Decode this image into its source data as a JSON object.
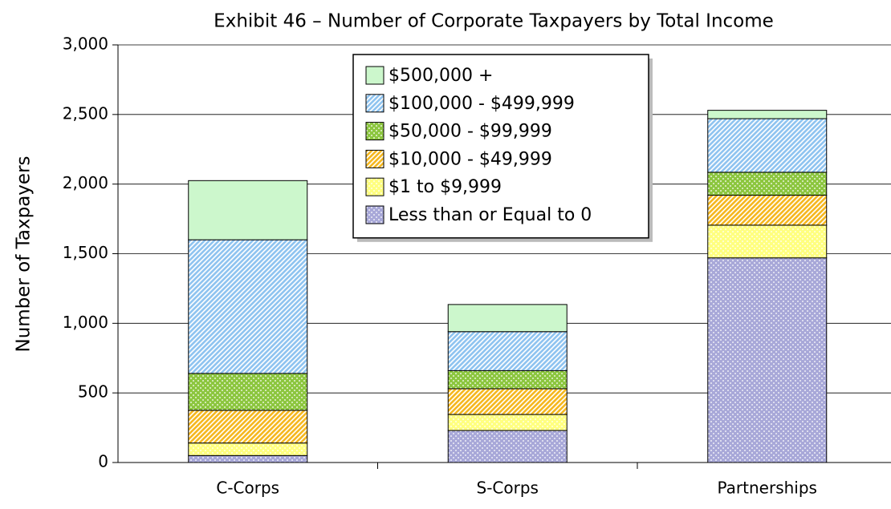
{
  "chart_data": {
    "type": "stacked_bar",
    "title": "Exhibit 46 – Number of Corporate Taxpayers by Total Income",
    "y_label": "Number of Taxpayers",
    "categories": [
      "C-Corps",
      "S-Corps",
      "Partnerships"
    ],
    "series": [
      {
        "name": "Less than or Equal to 0",
        "color": "#a8a8d8",
        "values": [
          50,
          230,
          1470
        ]
      },
      {
        "name": "$1 to $9,999",
        "color": "#ffff80",
        "values": [
          90,
          115,
          235
        ]
      },
      {
        "name": "$10,000 - $49,999",
        "color": "#f5b820",
        "values": [
          235,
          185,
          215
        ]
      },
      {
        "name": "$50,000 - $99,999",
        "color": "#8cc63f",
        "values": [
          265,
          130,
          165
        ]
      },
      {
        "name": "$100,000 - $499,999",
        "color": "#8fc4f0",
        "values": [
          960,
          280,
          385
        ]
      },
      {
        "name": "$500,000 +",
        "color": "#ccf7cc",
        "values": [
          425,
          195,
          60
        ]
      }
    ],
    "ylim": [
      0,
      3000
    ],
    "yticks": [
      0,
      500,
      {
        "value": 1000,
        "label": "1,000"
      },
      {
        "value": 1500,
        "label": "1,500"
      },
      {
        "value": 2000,
        "label": "2,000"
      },
      {
        "value": 2500,
        "label": "2,500"
      },
      {
        "value": 3000,
        "label": "3,000"
      }
    ],
    "grid": true,
    "legend": "top"
  }
}
